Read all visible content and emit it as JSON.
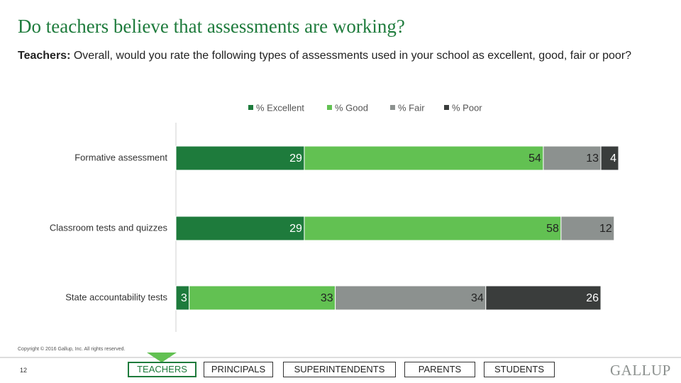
{
  "header": {
    "title": "Do teachers believe that assessments are working?",
    "subtitle_lead": "Teachers:",
    "subtitle": " Overall, would you rate the following types of assessments used in your school as excellent, good, fair or poor?"
  },
  "chart_data": {
    "type": "bar",
    "orientation": "horizontal",
    "stacked": true,
    "categories": [
      "Formative assessment",
      "Classroom tests and quizzes",
      "State accountability tests"
    ],
    "xlim": [
      0,
      100
    ],
    "series": [
      {
        "name": "% Excellent",
        "color": "#1e7b3c",
        "values": [
          29,
          29,
          3
        ]
      },
      {
        "name": "% Good",
        "color": "#62c152",
        "values": [
          54,
          58,
          33
        ]
      },
      {
        "name": "% Fair",
        "color": "#8c918f",
        "values": [
          13,
          12,
          34
        ]
      },
      {
        "name": "% Poor",
        "color": "#3a3d3c",
        "values": [
          4,
          null,
          26
        ]
      }
    ]
  },
  "footer": {
    "copyright": "Copyright © 2016 Gallup, Inc. All rights reserved.",
    "page": "12",
    "tabs": [
      "TEACHERS",
      "PRINCIPALS",
      "SUPERINTENDENTS",
      "PARENTS",
      "STUDENTS"
    ],
    "logo": "GALLUP"
  }
}
